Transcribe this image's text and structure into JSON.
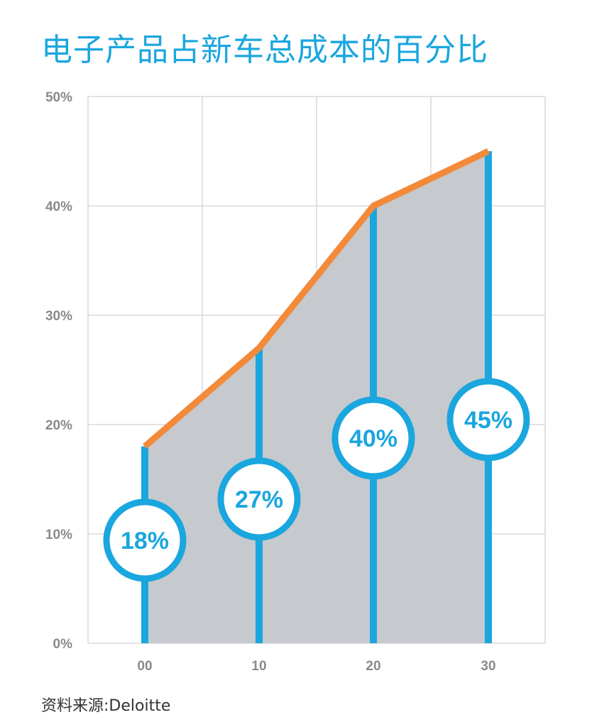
{
  "title": "电子产品占新车总成本的百分比",
  "source": "资料来源:Deloitte",
  "colors": {
    "accent": "#1aa6de",
    "line": "#f28a3a",
    "area": "#c6c9cd",
    "grid": "#d9d9d9"
  },
  "chart_data": {
    "type": "area",
    "categories": [
      "00",
      "10",
      "20",
      "30"
    ],
    "values": [
      18,
      27,
      40,
      45
    ],
    "value_labels": [
      "18%",
      "27%",
      "40%",
      "45%"
    ],
    "y_ticks": [
      "0%",
      "10%",
      "20%",
      "30%",
      "40%",
      "50%"
    ],
    "ylim": [
      0,
      50
    ],
    "grid": true,
    "title": "电子产品占新车总成本的百分比"
  }
}
